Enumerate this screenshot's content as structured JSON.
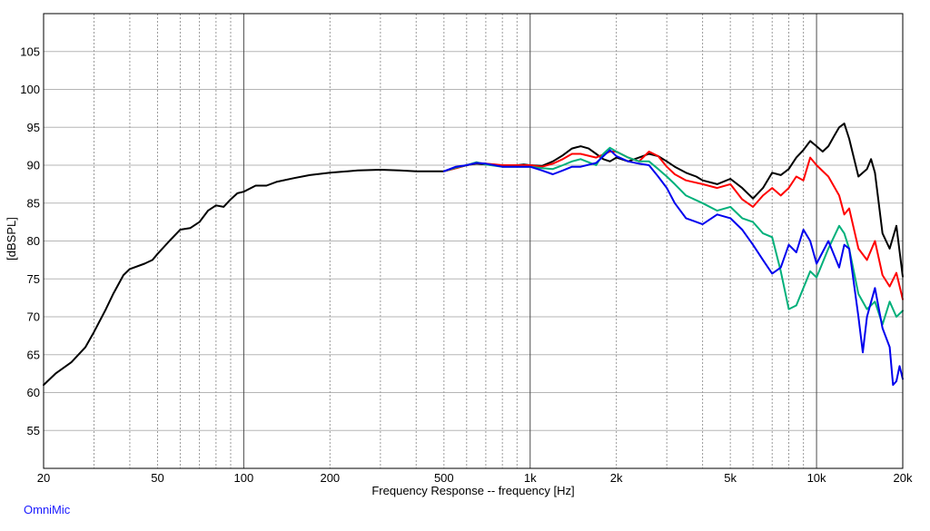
{
  "chart_data": {
    "type": "line",
    "title": "",
    "xlabel": "Frequency Response -- frequency [Hz]",
    "ylabel": "[dBSPL]",
    "x_scale": "log",
    "xlim": [
      20,
      20000
    ],
    "ylim": [
      50,
      110
    ],
    "grid": true,
    "legend": "none",
    "x_ticks": [
      {
        "value": 20,
        "label": "20"
      },
      {
        "value": 50,
        "label": "50"
      },
      {
        "value": 100,
        "label": "100"
      },
      {
        "value": 200,
        "label": "200"
      },
      {
        "value": 500,
        "label": "500"
      },
      {
        "value": 1000,
        "label": "1k"
      },
      {
        "value": 2000,
        "label": "2k"
      },
      {
        "value": 5000,
        "label": "5k"
      },
      {
        "value": 10000,
        "label": "10k"
      },
      {
        "value": 20000,
        "label": "20k"
      }
    ],
    "y_ticks": [
      55,
      60,
      65,
      70,
      75,
      80,
      85,
      90,
      95,
      100,
      105
    ],
    "series": [
      {
        "color": "#000000",
        "points": [
          [
            20,
            61
          ],
          [
            22,
            62.5
          ],
          [
            25,
            64
          ],
          [
            28,
            66
          ],
          [
            30,
            68
          ],
          [
            33,
            71
          ],
          [
            35,
            73
          ],
          [
            38,
            75.5
          ],
          [
            40,
            76.3
          ],
          [
            45,
            77
          ],
          [
            48,
            77.5
          ],
          [
            50,
            78.3
          ],
          [
            55,
            80
          ],
          [
            60,
            81.5
          ],
          [
            65,
            81.7
          ],
          [
            70,
            82.5
          ],
          [
            75,
            84
          ],
          [
            80,
            84.7
          ],
          [
            85,
            84.5
          ],
          [
            90,
            85.5
          ],
          [
            95,
            86.3
          ],
          [
            100,
            86.5
          ],
          [
            110,
            87.3
          ],
          [
            120,
            87.3
          ],
          [
            130,
            87.8
          ],
          [
            150,
            88.3
          ],
          [
            170,
            88.7
          ],
          [
            200,
            89
          ],
          [
            250,
            89.3
          ],
          [
            300,
            89.4
          ],
          [
            350,
            89.3
          ],
          [
            400,
            89.2
          ],
          [
            450,
            89.2
          ],
          [
            500,
            89.2
          ],
          [
            550,
            89.6
          ],
          [
            600,
            90
          ],
          [
            650,
            90.2
          ],
          [
            700,
            90.1
          ],
          [
            750,
            90
          ],
          [
            800,
            90
          ],
          [
            900,
            90
          ],
          [
            950,
            90.1
          ],
          [
            1000,
            90
          ],
          [
            1100,
            89.9
          ],
          [
            1200,
            90.5
          ],
          [
            1300,
            91.3
          ],
          [
            1400,
            92.2
          ],
          [
            1500,
            92.5
          ],
          [
            1600,
            92.2
          ],
          [
            1700,
            91.5
          ],
          [
            1800,
            90.8
          ],
          [
            1900,
            90.5
          ],
          [
            2000,
            91
          ],
          [
            2200,
            90.5
          ],
          [
            2400,
            91
          ],
          [
            2600,
            91.5
          ],
          [
            2800,
            91.2
          ],
          [
            3000,
            90.5
          ],
          [
            3200,
            89.8
          ],
          [
            3500,
            89
          ],
          [
            3800,
            88.5
          ],
          [
            4000,
            88
          ],
          [
            4500,
            87.5
          ],
          [
            5000,
            88.2
          ],
          [
            5500,
            87
          ],
          [
            6000,
            85.6
          ],
          [
            6500,
            87
          ],
          [
            7000,
            89
          ],
          [
            7500,
            88.7
          ],
          [
            8000,
            89.5
          ],
          [
            8500,
            91
          ],
          [
            9000,
            92
          ],
          [
            9500,
            93.2
          ],
          [
            10000,
            92.5
          ],
          [
            10500,
            91.8
          ],
          [
            11000,
            92.5
          ],
          [
            11500,
            93.8
          ],
          [
            12000,
            95
          ],
          [
            12500,
            95.5
          ],
          [
            13000,
            93.5
          ],
          [
            14000,
            88.5
          ],
          [
            15000,
            89.5
          ],
          [
            15500,
            90.8
          ],
          [
            16000,
            89
          ],
          [
            17000,
            81
          ],
          [
            18000,
            79
          ],
          [
            19000,
            82
          ],
          [
            20000,
            75.3
          ]
        ]
      },
      {
        "color": "#ff0000",
        "points": [
          [
            500,
            89.2
          ],
          [
            550,
            89.6
          ],
          [
            600,
            90
          ],
          [
            650,
            90.3
          ],
          [
            700,
            90.2
          ],
          [
            800,
            90
          ],
          [
            1000,
            90
          ],
          [
            1100,
            89.8
          ],
          [
            1200,
            90.2
          ],
          [
            1300,
            90.8
          ],
          [
            1400,
            91.5
          ],
          [
            1500,
            91.5
          ],
          [
            1700,
            91
          ],
          [
            1900,
            91.8
          ],
          [
            2000,
            91.8
          ],
          [
            2200,
            91
          ],
          [
            2400,
            90.5
          ],
          [
            2600,
            91.8
          ],
          [
            2800,
            91.2
          ],
          [
            3000,
            89.8
          ],
          [
            3200,
            88.8
          ],
          [
            3500,
            88
          ],
          [
            4000,
            87.5
          ],
          [
            4500,
            87
          ],
          [
            5000,
            87.5
          ],
          [
            5500,
            85.5
          ],
          [
            6000,
            84.5
          ],
          [
            6500,
            86
          ],
          [
            7000,
            87
          ],
          [
            7500,
            86
          ],
          [
            8000,
            87
          ],
          [
            8500,
            88.5
          ],
          [
            9000,
            88
          ],
          [
            9500,
            91
          ],
          [
            10000,
            90
          ],
          [
            11000,
            88.5
          ],
          [
            12000,
            86
          ],
          [
            12500,
            83.5
          ],
          [
            13000,
            84.3
          ],
          [
            14000,
            79
          ],
          [
            15000,
            77.5
          ],
          [
            16000,
            80
          ],
          [
            17000,
            75.5
          ],
          [
            18000,
            74
          ],
          [
            19000,
            75.8
          ],
          [
            20000,
            72.3
          ]
        ]
      },
      {
        "color": "#00b07a",
        "points": [
          [
            500,
            89.2
          ],
          [
            550,
            89.7
          ],
          [
            600,
            90
          ],
          [
            650,
            90.4
          ],
          [
            700,
            90.1
          ],
          [
            800,
            89.8
          ],
          [
            1000,
            89.8
          ],
          [
            1100,
            89.6
          ],
          [
            1200,
            89.5
          ],
          [
            1300,
            90
          ],
          [
            1400,
            90.5
          ],
          [
            1500,
            90.8
          ],
          [
            1700,
            90
          ],
          [
            1800,
            91.5
          ],
          [
            1900,
            92.3
          ],
          [
            2000,
            91.8
          ],
          [
            2200,
            91
          ],
          [
            2400,
            90.5
          ],
          [
            2600,
            90.5
          ],
          [
            2800,
            89.5
          ],
          [
            3000,
            88.5
          ],
          [
            3200,
            87.5
          ],
          [
            3500,
            86
          ],
          [
            4000,
            85
          ],
          [
            4500,
            84
          ],
          [
            5000,
            84.5
          ],
          [
            5500,
            83
          ],
          [
            6000,
            82.5
          ],
          [
            6500,
            81
          ],
          [
            7000,
            80.5
          ],
          [
            7500,
            76
          ],
          [
            8000,
            71
          ],
          [
            8500,
            71.5
          ],
          [
            9000,
            73.8
          ],
          [
            9500,
            76
          ],
          [
            10000,
            75.2
          ],
          [
            11000,
            79
          ],
          [
            12000,
            82
          ],
          [
            12500,
            81
          ],
          [
            13000,
            79
          ],
          [
            14000,
            73
          ],
          [
            15000,
            71
          ],
          [
            16000,
            72
          ],
          [
            17000,
            69
          ],
          [
            18000,
            72
          ],
          [
            19000,
            70
          ],
          [
            20000,
            70.8
          ]
        ]
      },
      {
        "color": "#0000ee",
        "points": [
          [
            500,
            89.2
          ],
          [
            550,
            89.8
          ],
          [
            600,
            90
          ],
          [
            650,
            90.3
          ],
          [
            700,
            90.2
          ],
          [
            800,
            89.8
          ],
          [
            1000,
            89.8
          ],
          [
            1100,
            89.3
          ],
          [
            1200,
            88.8
          ],
          [
            1300,
            89.3
          ],
          [
            1400,
            89.8
          ],
          [
            1500,
            89.8
          ],
          [
            1700,
            90.3
          ],
          [
            1900,
            92
          ],
          [
            2000,
            91.2
          ],
          [
            2200,
            90.5
          ],
          [
            2400,
            90.2
          ],
          [
            2600,
            90
          ],
          [
            2800,
            88.5
          ],
          [
            3000,
            87
          ],
          [
            3200,
            85
          ],
          [
            3500,
            83
          ],
          [
            4000,
            82.2
          ],
          [
            4500,
            83.5
          ],
          [
            5000,
            83
          ],
          [
            5500,
            81.5
          ],
          [
            6000,
            79.5
          ],
          [
            6500,
            77.5
          ],
          [
            7000,
            75.7
          ],
          [
            7500,
            76.5
          ],
          [
            8000,
            79.5
          ],
          [
            8500,
            78.5
          ],
          [
            9000,
            81.5
          ],
          [
            9500,
            80
          ],
          [
            10000,
            77
          ],
          [
            11000,
            80
          ],
          [
            12000,
            76.5
          ],
          [
            12500,
            79.5
          ],
          [
            13000,
            79
          ],
          [
            14000,
            70
          ],
          [
            14500,
            65.3
          ],
          [
            15000,
            70
          ],
          [
            16000,
            73.8
          ],
          [
            17000,
            68.5
          ],
          [
            18000,
            66
          ],
          [
            18500,
            61
          ],
          [
            19000,
            61.5
          ],
          [
            19500,
            63.5
          ],
          [
            20000,
            61.8
          ]
        ]
      }
    ]
  },
  "brand": "OmniMic"
}
